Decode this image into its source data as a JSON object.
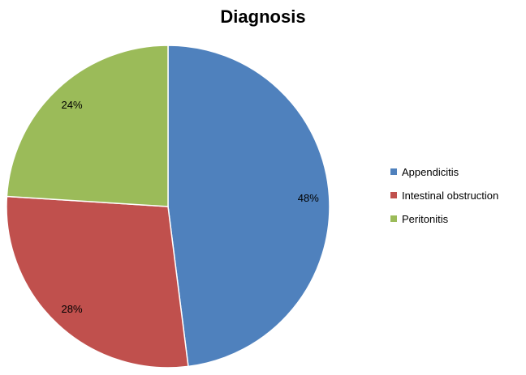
{
  "chart_data": {
    "type": "pie",
    "title": "Diagnosis",
    "categories": [
      "Appendicitis",
      "Intestinal obstruction",
      "Peritonitis"
    ],
    "values": [
      48,
      28,
      24
    ],
    "labels": [
      "48%",
      "28%",
      "24%"
    ],
    "colors": [
      "#4F81BD",
      "#C0504D",
      "#9BBB59"
    ],
    "legend_position": "right",
    "start_angle": "12 o'clock, clockwise"
  }
}
